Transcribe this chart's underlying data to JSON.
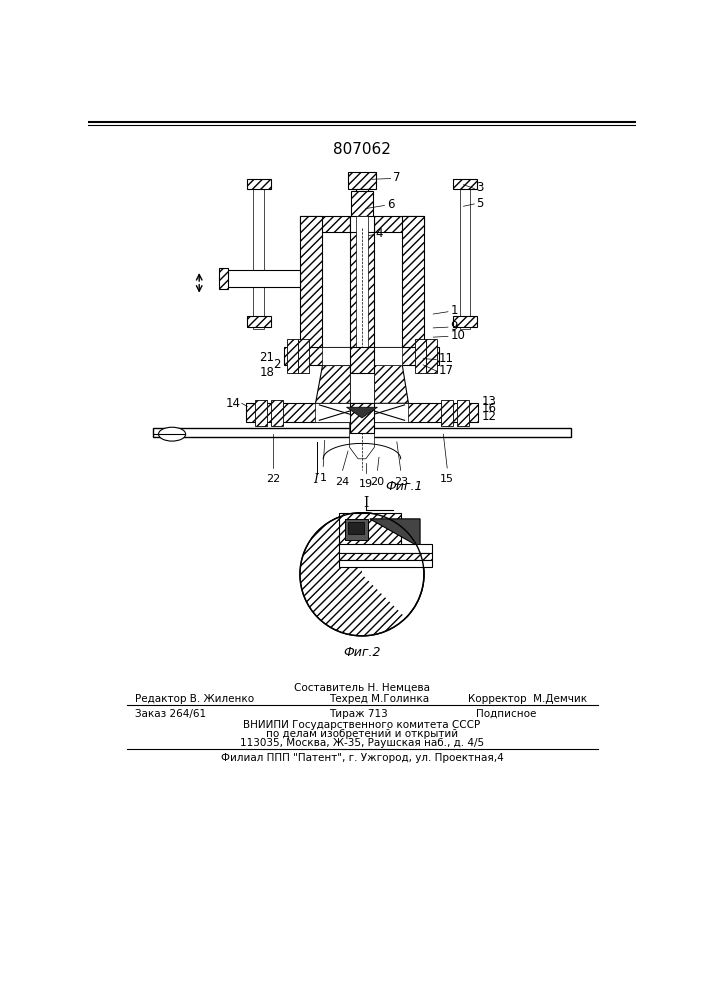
{
  "patent_number": "807062",
  "fig1_label": "Фиг.1",
  "fig2_label": "Фиг.2",
  "section_label": "I",
  "background_color": "#ffffff",
  "line_color": "#000000",
  "footer_line1_top": "Составитель Н. Немцева",
  "footer_line1_left": "Редактор В. Жиленко",
  "footer_line1_center": "Техред М.Голинка",
  "footer_line1_right": "Корректор  М.Демчик",
  "footer_line2_left": "Заказ 264/61",
  "footer_line2_center": "Тираж 713",
  "footer_line2_right": "Подписное",
  "footer_line3": "ВНИИПИ Государственного комитета СССР",
  "footer_line4": "по делам изобретений и открытий",
  "footer_line5": "113035, Москва, Ж-35, Раушская наб., д. 4/5",
  "footer_line6": "Филиал ППП \"Патент\", г. Ужгород, ул. Проектная,4"
}
